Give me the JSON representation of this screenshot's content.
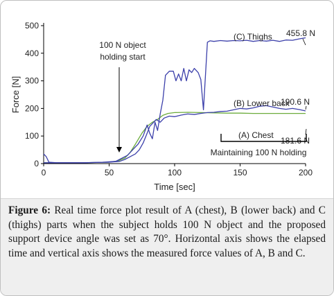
{
  "chart_data": {
    "type": "line",
    "xlabel": "Time [sec]",
    "ylabel": "Force [N]",
    "xlim": [
      0,
      200
    ],
    "ylim": [
      0,
      500
    ],
    "x_ticks": [
      0,
      50,
      100,
      150,
      200
    ],
    "y_ticks": [
      0,
      100,
      200,
      300,
      400,
      500
    ],
    "grid": false,
    "series": [
      {
        "name": "(C) Thighs",
        "color": "#3b3faa",
        "end_label": "455.8 N",
        "points": [
          [
            0,
            35
          ],
          [
            2,
            25
          ],
          [
            4,
            5
          ],
          [
            10,
            3
          ],
          [
            30,
            3
          ],
          [
            45,
            5
          ],
          [
            55,
            8
          ],
          [
            60,
            20
          ],
          [
            64,
            30
          ],
          [
            68,
            50
          ],
          [
            72,
            70
          ],
          [
            76,
            100
          ],
          [
            79,
            140
          ],
          [
            81,
            110
          ],
          [
            83,
            90
          ],
          [
            85,
            150
          ],
          [
            87,
            120
          ],
          [
            89,
            180
          ],
          [
            91,
            230
          ],
          [
            93,
            320
          ],
          [
            96,
            335
          ],
          [
            99,
            335
          ],
          [
            101,
            300
          ],
          [
            103,
            325
          ],
          [
            105,
            300
          ],
          [
            107,
            345
          ],
          [
            109,
            300
          ],
          [
            111,
            340
          ],
          [
            113,
            330
          ],
          [
            115,
            345
          ],
          [
            118,
            330
          ],
          [
            120,
            305
          ],
          [
            122,
            195
          ],
          [
            125,
            440
          ],
          [
            127,
            445
          ],
          [
            130,
            443
          ],
          [
            135,
            446
          ],
          [
            140,
            444
          ],
          [
            145,
            446
          ],
          [
            150,
            445
          ],
          [
            155,
            447
          ],
          [
            160,
            443
          ],
          [
            165,
            446
          ],
          [
            170,
            444
          ],
          [
            175,
            447
          ],
          [
            180,
            443
          ],
          [
            185,
            448
          ],
          [
            190,
            447
          ],
          [
            195,
            452
          ],
          [
            200,
            456
          ]
        ]
      },
      {
        "name": "(B) Lower back",
        "color": "#3b3faa",
        "end_label": "190.6 N",
        "points": [
          [
            0,
            3
          ],
          [
            30,
            3
          ],
          [
            50,
            5
          ],
          [
            58,
            8
          ],
          [
            62,
            15
          ],
          [
            66,
            25
          ],
          [
            70,
            35
          ],
          [
            73,
            50
          ],
          [
            76,
            75
          ],
          [
            79,
            110
          ],
          [
            81,
            135
          ],
          [
            83,
            145
          ],
          [
            86,
            160
          ],
          [
            89,
            150
          ],
          [
            92,
            165
          ],
          [
            96,
            172
          ],
          [
            100,
            170
          ],
          [
            105,
            176
          ],
          [
            110,
            180
          ],
          [
            115,
            178
          ],
          [
            120,
            182
          ],
          [
            125,
            185
          ],
          [
            130,
            186
          ],
          [
            135,
            189
          ],
          [
            140,
            190
          ],
          [
            145,
            195
          ],
          [
            150,
            200
          ],
          [
            155,
            198
          ],
          [
            160,
            202
          ],
          [
            165,
            208
          ],
          [
            170,
            210
          ],
          [
            175,
            205
          ],
          [
            180,
            200
          ],
          [
            185,
            197
          ],
          [
            190,
            200
          ],
          [
            195,
            196
          ],
          [
            200,
            191
          ]
        ]
      },
      {
        "name": "(A) Chest",
        "color": "#6cac3c",
        "end_label": "181.6 N",
        "points": [
          [
            0,
            3
          ],
          [
            30,
            3
          ],
          [
            50,
            5
          ],
          [
            57,
            10
          ],
          [
            62,
            20
          ],
          [
            66,
            40
          ],
          [
            70,
            70
          ],
          [
            75,
            110
          ],
          [
            79,
            135
          ],
          [
            83,
            150
          ],
          [
            87,
            160
          ],
          [
            91,
            175
          ],
          [
            95,
            182
          ],
          [
            100,
            185
          ],
          [
            110,
            186
          ],
          [
            120,
            185
          ],
          [
            130,
            184
          ],
          [
            140,
            183
          ],
          [
            150,
            183
          ],
          [
            160,
            182
          ],
          [
            170,
            182
          ],
          [
            180,
            182
          ],
          [
            190,
            182
          ],
          [
            200,
            182
          ]
        ]
      }
    ],
    "annotations": {
      "holding_start": "100 N object\nholding start",
      "maintaining": "Maintaining 100 N holding"
    }
  },
  "caption": {
    "label": "Figure 6:",
    "text": "Real time force plot result of A (chest), B (lower back) and C (thighs) parts when the subject holds 100 N object and the proposed support device angle was set as 70°. Horizontal axis shows the elapsed time and vertical axis shows the measured force values of A, B and C."
  }
}
